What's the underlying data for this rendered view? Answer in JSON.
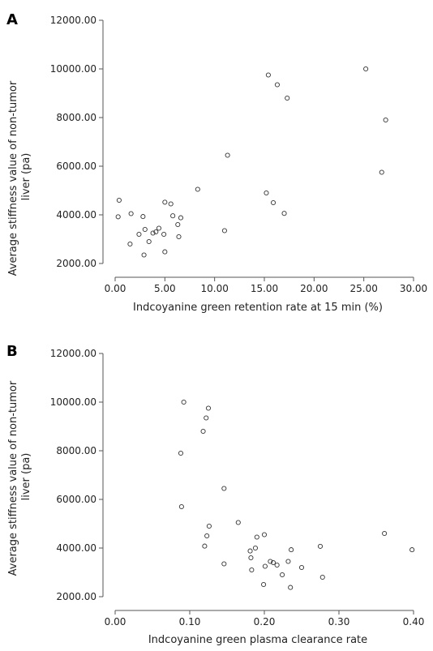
{
  "chart_data": [
    {
      "type": "scatter",
      "panel_label": "A",
      "xlabel": "Indcoyanine green retention rate at 15 min (%)",
      "ylabel_lines": [
        "Average stiffness value of non-tumor",
        "liver (pa)"
      ],
      "xlim": [
        0,
        30
      ],
      "ylim": [
        2000,
        12000
      ],
      "xticks": [
        "0.00",
        "5.00",
        "10.00",
        "15.00",
        "20.00",
        "25.00",
        "30.00"
      ],
      "yticks": [
        "2000.00",
        "4000.00",
        "6000.00",
        "8000.00",
        "10000.00",
        "12000.00"
      ],
      "points": [
        [
          0.3,
          3920
        ],
        [
          0.4,
          4600
        ],
        [
          1.5,
          2800
        ],
        [
          1.6,
          4050
        ],
        [
          2.4,
          3200
        ],
        [
          2.8,
          3930
        ],
        [
          2.9,
          2350
        ],
        [
          3.0,
          3400
        ],
        [
          3.4,
          2900
        ],
        [
          3.8,
          3250
        ],
        [
          4.1,
          3300
        ],
        [
          4.4,
          3450
        ],
        [
          4.9,
          3200
        ],
        [
          5.0,
          4520
        ],
        [
          5.0,
          2480
        ],
        [
          5.6,
          4450
        ],
        [
          5.8,
          3960
        ],
        [
          6.3,
          3600
        ],
        [
          6.4,
          3100
        ],
        [
          6.6,
          3880
        ],
        [
          8.3,
          5050
        ],
        [
          11.0,
          3350
        ],
        [
          11.3,
          6450
        ],
        [
          15.2,
          4900
        ],
        [
          15.4,
          9750
        ],
        [
          15.9,
          4500
        ],
        [
          16.3,
          9350
        ],
        [
          17.0,
          4060
        ],
        [
          17.3,
          8800
        ],
        [
          25.2,
          10000
        ],
        [
          26.8,
          5750
        ],
        [
          27.2,
          7900
        ]
      ]
    },
    {
      "type": "scatter",
      "panel_label": "B",
      "xlabel": "Indcoyanine green plasma clearance rate",
      "ylabel_lines": [
        "Average stiffness value of non-tumor",
        "liver (pa)"
      ],
      "xlim": [
        0,
        0.4
      ],
      "ylim": [
        2000,
        12000
      ],
      "xticks": [
        "0.00",
        "0.10",
        "0.20",
        "0.30",
        "0.40"
      ],
      "yticks": [
        "2000.00",
        "4000.00",
        "6000.00",
        "8000.00",
        "10000.00",
        "12000.00"
      ],
      "points": [
        [
          0.088,
          7900
        ],
        [
          0.089,
          5700
        ],
        [
          0.092,
          10000
        ],
        [
          0.118,
          8800
        ],
        [
          0.12,
          4080
        ],
        [
          0.122,
          9350
        ],
        [
          0.123,
          4500
        ],
        [
          0.125,
          9750
        ],
        [
          0.126,
          4900
        ],
        [
          0.146,
          3350
        ],
        [
          0.146,
          6450
        ],
        [
          0.165,
          5050
        ],
        [
          0.181,
          3880
        ],
        [
          0.182,
          3600
        ],
        [
          0.183,
          3100
        ],
        [
          0.188,
          4000
        ],
        [
          0.19,
          4450
        ],
        [
          0.199,
          2500
        ],
        [
          0.2,
          4550
        ],
        [
          0.201,
          3250
        ],
        [
          0.208,
          3450
        ],
        [
          0.212,
          3400
        ],
        [
          0.217,
          3300
        ],
        [
          0.224,
          2900
        ],
        [
          0.232,
          3450
        ],
        [
          0.235,
          2380
        ],
        [
          0.236,
          3930
        ],
        [
          0.25,
          3200
        ],
        [
          0.275,
          4070
        ],
        [
          0.278,
          2800
        ],
        [
          0.361,
          4600
        ],
        [
          0.398,
          3930
        ]
      ]
    }
  ]
}
